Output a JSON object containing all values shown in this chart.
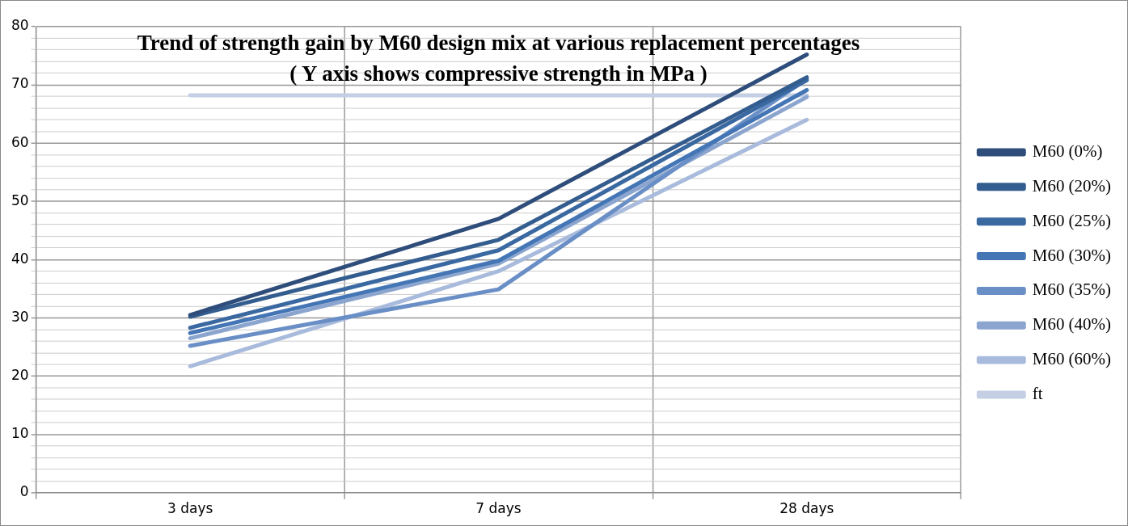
{
  "chart_data": {
    "type": "line",
    "title": "Trend of strength gain by M60 design mix at various replacement percentages",
    "subtitle": "( Y axis shows compressive strength in MPa )",
    "categories": [
      "3 days",
      "7 days",
      "28 days"
    ],
    "series": [
      {
        "name": "M60 (0%)",
        "color": "#2e4d7b",
        "values": [
          30.5,
          47,
          75.2
        ]
      },
      {
        "name": "M60 (20%)",
        "color": "#345d8f",
        "values": [
          30.2,
          43.4,
          71.3
        ]
      },
      {
        "name": "M60 (25%)",
        "color": "#3a69a2",
        "values": [
          28.3,
          41.6,
          70.8
        ]
      },
      {
        "name": "M60 (30%)",
        "color": "#4476b6",
        "values": [
          27.4,
          39.8,
          69.1
        ]
      },
      {
        "name": "M60 (35%)",
        "color": "#6a8fc6",
        "values": [
          25.2,
          34.9,
          71
        ]
      },
      {
        "name": "M60 (40%)",
        "color": "#8ba5cf",
        "values": [
          26.5,
          39.3,
          67.9
        ]
      },
      {
        "name": "M60 (60%)",
        "color": "#a9bbdc",
        "values": [
          21.7,
          38,
          64
        ]
      },
      {
        "name": "ft",
        "color": "#c4cfe4",
        "values": [
          68.2,
          68.2,
          68.2
        ]
      }
    ],
    "ylim": [
      0,
      80
    ],
    "yticks": [
      0,
      {
        "value": 2,
        "label": null
      },
      {
        "value": 4,
        "label": null
      },
      {
        "value": 6,
        "label": null
      },
      {
        "value": 8,
        "label": null
      },
      10,
      {
        "value": 12,
        "label": null
      },
      {
        "value": 14,
        "label": null
      },
      {
        "value": 16,
        "label": null
      },
      {
        "value": 18,
        "label": null
      },
      20,
      {
        "value": 22,
        "label": null
      },
      {
        "value": 24,
        "label": null
      },
      {
        "value": 26,
        "label": null
      },
      {
        "value": 28,
        "label": null
      },
      30,
      {
        "value": 32,
        "label": null
      },
      {
        "value": 34,
        "label": null
      },
      {
        "value": 36,
        "label": null
      },
      {
        "value": 38,
        "label": null
      },
      40,
      {
        "value": 42,
        "label": null
      },
      {
        "value": 44,
        "label": null
      },
      {
        "value": 46,
        "label": null
      },
      {
        "value": 48,
        "label": null
      },
      50,
      {
        "value": 52,
        "label": null
      },
      {
        "value": 54,
        "label": null
      },
      {
        "value": 56,
        "label": null
      },
      {
        "value": 58,
        "label": null
      },
      60,
      {
        "value": 62,
        "label": null
      },
      {
        "value": 64,
        "label": null
      },
      {
        "value": 66,
        "label": null
      },
      {
        "value": 68,
        "label": null
      },
      70,
      {
        "value": 72,
        "label": null
      },
      {
        "value": 74,
        "label": null
      },
      {
        "value": 76,
        "label": null
      },
      {
        "value": 78,
        "label": null
      },
      80
    ],
    "grid": true,
    "legend": "right",
    "marker": "none",
    "line_style": "solid"
  }
}
